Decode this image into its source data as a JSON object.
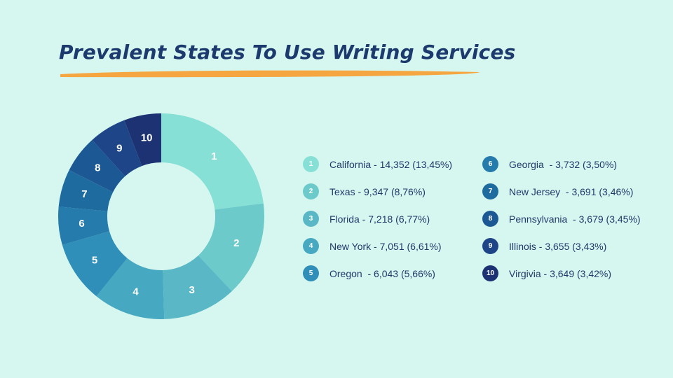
{
  "title": "Prevalent States To Use Writing Services",
  "colors": {
    "background": "#d6f7ef",
    "title": "#1d3a6e",
    "underline": "#f5a640"
  },
  "chart_data": {
    "type": "pie",
    "variant": "donut",
    "title": "",
    "categories": [
      "California",
      "Texas",
      "Florida",
      "New York",
      "Oregon",
      "Georgia",
      "New Jersey",
      "Pennsylvania",
      "Illinois",
      "Virgivia"
    ],
    "values": [
      14352,
      9347,
      7218,
      7051,
      6043,
      3732,
      3691,
      3679,
      3655,
      3649
    ],
    "percentages": [
      13.45,
      8.76,
      6.77,
      6.61,
      5.66,
      3.5,
      3.46,
      3.45,
      3.43,
      3.42
    ],
    "segment_labels": [
      "1",
      "2",
      "3",
      "4",
      "5",
      "6",
      "7",
      "8",
      "9",
      "10"
    ],
    "colors": [
      "#86e0d6",
      "#6ccaca",
      "#5ab8c6",
      "#47a8c2",
      "#2f8fb8",
      "#257bab",
      "#1e6ba0",
      "#1c5894",
      "#1d4587",
      "#1d3272"
    ],
    "legend_placement": "right",
    "legend": [
      {
        "num": "1",
        "label": "California - 14,352 (13,45%)"
      },
      {
        "num": "2",
        "label": "Texas - 9,347 (8,76%)"
      },
      {
        "num": "3",
        "label": "Florida - 7,218 (6,77%)"
      },
      {
        "num": "4",
        "label": "New York - 7,051 (6,61%)"
      },
      {
        "num": "5",
        "label": "Oregon  - 6,043 (5,66%)"
      },
      {
        "num": "6",
        "label": "Georgia  - 3,732 (3,50%)"
      },
      {
        "num": "7",
        "label": "New Jersey  - 3,691 (3,46%)"
      },
      {
        "num": "8",
        "label": "Pennsylvania  - 3,679 (3,45%)"
      },
      {
        "num": "9",
        "label": "Illinois - 3,655 (3,43%)"
      },
      {
        "num": "10",
        "label": "Virgivia - 3,649 (3,42%)"
      }
    ]
  }
}
